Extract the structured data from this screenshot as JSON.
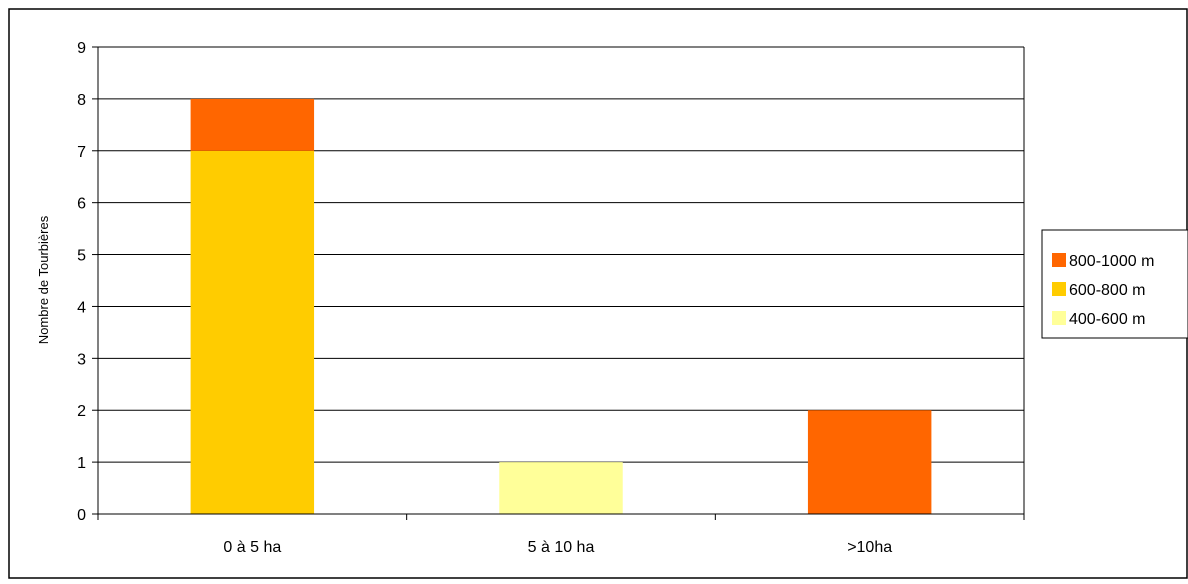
{
  "chart_data": {
    "type": "bar",
    "stacked": true,
    "title": "",
    "xlabel": "",
    "ylabel": "Nombre de Tourbières",
    "ylim": [
      0,
      9
    ],
    "yticks": [
      0,
      1,
      2,
      3,
      4,
      5,
      6,
      7,
      8,
      9
    ],
    "grid": true,
    "legend_position": "right",
    "categories": [
      "0 à 5 ha",
      "5 à 10 ha",
      ">10ha"
    ],
    "series": [
      {
        "name": "400-600 m",
        "color": "#FFFF99",
        "values": [
          0,
          1,
          0
        ]
      },
      {
        "name": "600-800 m",
        "color": "#FFCC00",
        "values": [
          7,
          0,
          0
        ]
      },
      {
        "name": "800-1000 m",
        "color": "#FF6600",
        "values": [
          1,
          0,
          2
        ]
      }
    ],
    "legend_order": [
      "800-1000 m",
      "600-800 m",
      "400-600 m"
    ]
  }
}
